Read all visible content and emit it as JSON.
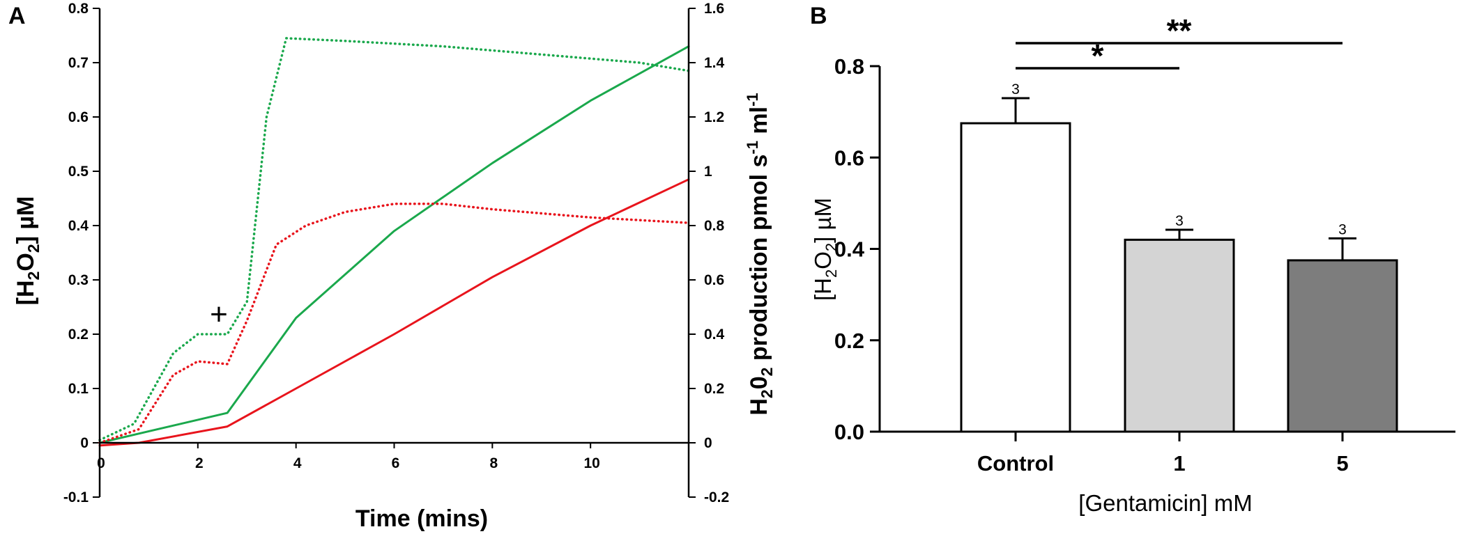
{
  "chart_data": [
    {
      "panel": "A",
      "type": "line",
      "title": "",
      "xlabel": "Time (mins)",
      "ylabel_left": "[H2O2] µM",
      "ylabel_right": "H202 production pmol s-1 ml-1",
      "xlim": [
        0,
        12
      ],
      "ylim_left": [
        -0.1,
        0.8
      ],
      "ylim_right": [
        -0.2,
        1.6
      ],
      "x_ticks": [
        "0",
        "2",
        "4",
        "6",
        "8",
        "10"
      ],
      "y_ticks_left": [
        "-0.1",
        "0",
        "0.1",
        "0.2",
        "0.3",
        "0.4",
        "0.5",
        "0.6",
        "0.7",
        "0.8"
      ],
      "y_ticks_right": [
        "-0.2",
        "0",
        "0.2",
        "0.4",
        "0.6",
        "0.8",
        "1",
        "1.2",
        "1.4",
        "1.6"
      ],
      "annotation": "+",
      "series": [
        {
          "name": "green concentration",
          "color": "#1aa84c",
          "style": "solid",
          "axis": "left",
          "x": [
            0,
            2.6,
            4,
            6,
            8,
            10,
            12
          ],
          "y": [
            0,
            0.055,
            0.23,
            0.39,
            0.515,
            0.63,
            0.73
          ]
        },
        {
          "name": "red concentration",
          "color": "#e8141c",
          "style": "solid",
          "axis": "left",
          "x": [
            0,
            0.8,
            2.6,
            4,
            6,
            8,
            10,
            12
          ],
          "y": [
            -0.005,
            0,
            0.03,
            0.1,
            0.2,
            0.305,
            0.4,
            0.485
          ]
        },
        {
          "name": "green production",
          "color": "#1aa84c",
          "style": "dotted",
          "axis": "right",
          "x": [
            0,
            0.7,
            1.5,
            2.0,
            2.6,
            3.0,
            3.4,
            3.8,
            5,
            7,
            9,
            11,
            12
          ],
          "y": [
            0.01,
            0.07,
            0.33,
            0.4,
            0.4,
            0.52,
            1.2,
            1.49,
            1.48,
            1.46,
            1.43,
            1.4,
            1.37
          ]
        },
        {
          "name": "red production",
          "color": "#e8141c",
          "style": "dotted",
          "axis": "right",
          "x": [
            0,
            0.8,
            1.5,
            2.0,
            2.6,
            3.0,
            3.6,
            4.2,
            5,
            6,
            7,
            8,
            10,
            12
          ],
          "y": [
            0,
            0.05,
            0.25,
            0.3,
            0.29,
            0.45,
            0.73,
            0.8,
            0.85,
            0.88,
            0.88,
            0.86,
            0.83,
            0.81
          ]
        }
      ]
    },
    {
      "panel": "B",
      "type": "bar",
      "title": "",
      "xlabel": "[Gentamicin] mM",
      "ylabel": "[H2O2] µM",
      "ylim": [
        0,
        0.8
      ],
      "y_ticks": [
        "0.0",
        "0.2",
        "0.4",
        "0.6",
        "0.8"
      ],
      "categories": [
        "Control",
        "1",
        "5"
      ],
      "values": [
        0.675,
        0.42,
        0.375
      ],
      "errors": [
        0.055,
        0.022,
        0.048
      ],
      "n": [
        "3",
        "3",
        "3"
      ],
      "bar_colors": [
        "#ffffff",
        "#d4d4d4",
        "#7d7d7d"
      ],
      "significance": [
        {
          "from": "Control",
          "to": "1",
          "label": "*"
        },
        {
          "from": "Control",
          "to": "5",
          "label": "**"
        }
      ]
    }
  ],
  "panel_labels": [
    "A",
    "B"
  ]
}
